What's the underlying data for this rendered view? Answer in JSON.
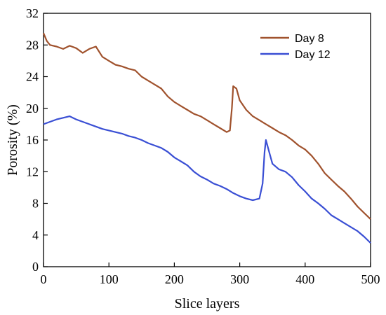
{
  "chart_data": {
    "type": "line",
    "title": "",
    "xlabel": "Slice layers",
    "ylabel": "Porosity (%)",
    "xlim": [
      0,
      500
    ],
    "ylim": [
      0,
      32
    ],
    "xticks": [
      0,
      100,
      200,
      300,
      400,
      500
    ],
    "yticks": [
      0,
      4,
      8,
      12,
      16,
      20,
      24,
      28,
      32
    ],
    "grid": false,
    "legend_position": "top-right",
    "series": [
      {
        "name": "Day 8",
        "color": "#a0522d",
        "points": [
          [
            0,
            29.5
          ],
          [
            5,
            28.5
          ],
          [
            10,
            28.0
          ],
          [
            20,
            27.8
          ],
          [
            30,
            27.5
          ],
          [
            40,
            27.9
          ],
          [
            50,
            27.6
          ],
          [
            60,
            27.0
          ],
          [
            70,
            27.5
          ],
          [
            80,
            27.8
          ],
          [
            90,
            26.5
          ],
          [
            100,
            26.0
          ],
          [
            110,
            25.5
          ],
          [
            120,
            25.3
          ],
          [
            130,
            25.0
          ],
          [
            140,
            24.8
          ],
          [
            150,
            24.0
          ],
          [
            160,
            23.5
          ],
          [
            170,
            23.0
          ],
          [
            180,
            22.5
          ],
          [
            190,
            21.5
          ],
          [
            200,
            20.8
          ],
          [
            210,
            20.3
          ],
          [
            220,
            19.8
          ],
          [
            230,
            19.3
          ],
          [
            240,
            19.0
          ],
          [
            250,
            18.5
          ],
          [
            260,
            18.0
          ],
          [
            270,
            17.5
          ],
          [
            280,
            17.0
          ],
          [
            285,
            17.2
          ],
          [
            288,
            20.0
          ],
          [
            290,
            22.8
          ],
          [
            295,
            22.5
          ],
          [
            300,
            21.0
          ],
          [
            310,
            19.8
          ],
          [
            320,
            19.0
          ],
          [
            330,
            18.5
          ],
          [
            340,
            18.0
          ],
          [
            350,
            17.5
          ],
          [
            360,
            17.0
          ],
          [
            370,
            16.6
          ],
          [
            380,
            16.0
          ],
          [
            390,
            15.3
          ],
          [
            400,
            14.8
          ],
          [
            410,
            14.0
          ],
          [
            420,
            13.0
          ],
          [
            430,
            11.8
          ],
          [
            440,
            11.0
          ],
          [
            450,
            10.2
          ],
          [
            460,
            9.5
          ],
          [
            470,
            8.6
          ],
          [
            480,
            7.6
          ],
          [
            490,
            6.8
          ],
          [
            500,
            6.0
          ]
        ]
      },
      {
        "name": "Day 12",
        "color": "#3a4fd4",
        "points": [
          [
            0,
            18.0
          ],
          [
            10,
            18.3
          ],
          [
            20,
            18.6
          ],
          [
            30,
            18.8
          ],
          [
            40,
            19.0
          ],
          [
            50,
            18.6
          ],
          [
            60,
            18.3
          ],
          [
            70,
            18.0
          ],
          [
            80,
            17.7
          ],
          [
            90,
            17.4
          ],
          [
            100,
            17.2
          ],
          [
            110,
            17.0
          ],
          [
            120,
            16.8
          ],
          [
            130,
            16.5
          ],
          [
            140,
            16.3
          ],
          [
            150,
            16.0
          ],
          [
            160,
            15.6
          ],
          [
            170,
            15.3
          ],
          [
            180,
            15.0
          ],
          [
            190,
            14.5
          ],
          [
            200,
            13.8
          ],
          [
            210,
            13.3
          ],
          [
            220,
            12.8
          ],
          [
            230,
            12.0
          ],
          [
            240,
            11.4
          ],
          [
            250,
            11.0
          ],
          [
            260,
            10.5
          ],
          [
            270,
            10.2
          ],
          [
            280,
            9.8
          ],
          [
            290,
            9.3
          ],
          [
            300,
            8.9
          ],
          [
            310,
            8.6
          ],
          [
            320,
            8.4
          ],
          [
            330,
            8.6
          ],
          [
            335,
            10.5
          ],
          [
            338,
            14.5
          ],
          [
            340,
            16.0
          ],
          [
            345,
            14.5
          ],
          [
            350,
            13.0
          ],
          [
            360,
            12.3
          ],
          [
            370,
            12.0
          ],
          [
            380,
            11.3
          ],
          [
            390,
            10.3
          ],
          [
            400,
            9.5
          ],
          [
            410,
            8.6
          ],
          [
            420,
            8.0
          ],
          [
            430,
            7.3
          ],
          [
            440,
            6.5
          ],
          [
            450,
            6.0
          ],
          [
            460,
            5.5
          ],
          [
            470,
            5.0
          ],
          [
            480,
            4.5
          ],
          [
            490,
            3.8
          ],
          [
            500,
            3.0
          ]
        ]
      }
    ]
  }
}
